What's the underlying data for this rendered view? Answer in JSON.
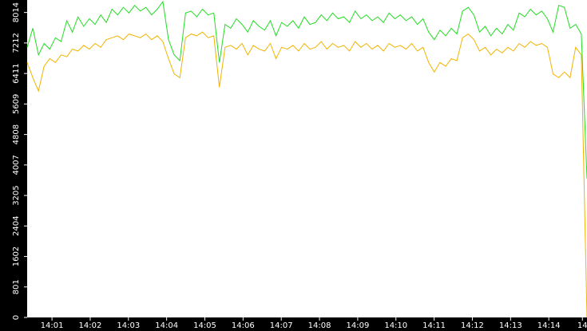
{
  "chart_data": {
    "type": "line",
    "xlim": [
      0.35,
      15.0
    ],
    "xticks": [
      {
        "value": 1,
        "label": "14:01"
      },
      {
        "value": 2,
        "label": "14:02"
      },
      {
        "value": 3,
        "label": "14:03"
      },
      {
        "value": 4,
        "label": "14:04"
      },
      {
        "value": 5,
        "label": "14:05"
      },
      {
        "value": 6,
        "label": "14:06"
      },
      {
        "value": 7,
        "label": "14:07"
      },
      {
        "value": 8,
        "label": "14:08"
      },
      {
        "value": 9,
        "label": "14:09"
      },
      {
        "value": 10,
        "label": "14:10"
      },
      {
        "value": 11,
        "label": "14:11"
      },
      {
        "value": 12,
        "label": "14:12"
      },
      {
        "value": 13,
        "label": "14:13"
      },
      {
        "value": 14,
        "label": "14:14"
      },
      {
        "value": 14.88,
        "label": "14"
      }
    ],
    "ylim": [
      0,
      8300
    ],
    "yticks": [
      0,
      801,
      1602,
      2404,
      3205,
      4007,
      4808,
      5609,
      6411,
      7212,
      8014
    ],
    "series": [
      {
        "color": "#22dd22",
        "values": [
          7100,
          7600,
          6900,
          7200,
          7050,
          7350,
          7250,
          7800,
          7500,
          7900,
          7650,
          7850,
          7700,
          7950,
          7750,
          8100,
          7950,
          8150,
          8000,
          8200,
          8050,
          8150,
          7950,
          8100,
          8300,
          7300,
          6900,
          6750,
          8000,
          8050,
          7900,
          8100,
          7950,
          8000,
          6700,
          7700,
          7600,
          7850,
          7700,
          7500,
          7800,
          7650,
          7550,
          7800,
          7400,
          7750,
          7650,
          7800,
          7600,
          7900,
          7700,
          7750,
          7950,
          7800,
          8000,
          7850,
          7900,
          7750,
          8050,
          7850,
          7950,
          7800,
          7900,
          7750,
          8000,
          7850,
          7950,
          7800,
          7900,
          7700,
          7850,
          7500,
          7300,
          7550,
          7400,
          7600,
          7450,
          8050,
          8150,
          7950,
          7500,
          7650,
          7400,
          7600,
          7450,
          7700,
          7550,
          8000,
          7900,
          8100,
          7950,
          8050,
          7850,
          7500,
          8200,
          8150,
          7600,
          7700,
          7450,
          3650
        ]
      },
      {
        "color": "#f0b400",
        "values": [
          6700,
          6300,
          5950,
          6600,
          6800,
          6700,
          6900,
          6850,
          7050,
          7000,
          7150,
          7050,
          7200,
          7100,
          7300,
          7350,
          7400,
          7300,
          7450,
          7400,
          7350,
          7450,
          7300,
          7400,
          7250,
          6800,
          6400,
          6300,
          7350,
          7450,
          7400,
          7500,
          7350,
          7400,
          6050,
          7100,
          7150,
          7050,
          7200,
          6900,
          7150,
          7050,
          7000,
          7200,
          6800,
          7100,
          7050,
          7150,
          7000,
          7200,
          7050,
          7100,
          7250,
          7050,
          7200,
          7100,
          7150,
          7000,
          7250,
          7100,
          7200,
          7050,
          7150,
          7000,
          7200,
          7100,
          7150,
          7050,
          7200,
          7000,
          7100,
          6700,
          6450,
          6700,
          6600,
          6800,
          6750,
          7350,
          7450,
          7300,
          7000,
          7100,
          6900,
          7050,
          6950,
          7100,
          7000,
          7200,
          7100,
          7250,
          7150,
          7200,
          7100,
          6400,
          6300,
          6450,
          6300,
          7100,
          6900,
          0
        ]
      }
    ]
  }
}
